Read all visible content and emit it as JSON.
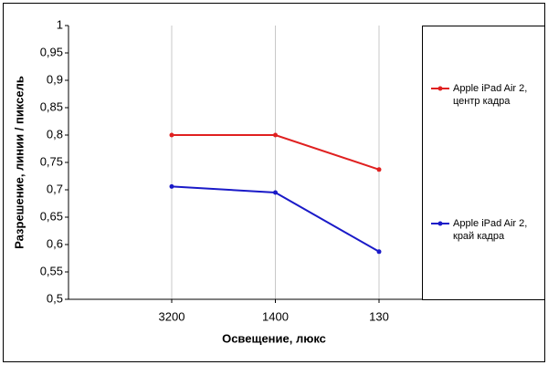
{
  "chart_data": {
    "type": "line",
    "x_label": "Освещение, люкс",
    "y_label": "Разрешение, линии / пиксель",
    "categories": [
      "3200",
      "1400",
      "130"
    ],
    "series": [
      {
        "name": "Apple iPad Air 2, центр кадра",
        "color": "#e02020",
        "values": [
          0.8,
          0.8,
          0.737
        ]
      },
      {
        "name": "Apple iPad Air 2, край кадра",
        "color": "#1a1ac8",
        "values": [
          0.706,
          0.695,
          0.587
        ]
      }
    ],
    "ylim": [
      0.5,
      1
    ],
    "yticks": [
      {
        "value": 0.5,
        "label": "0,5"
      },
      {
        "value": 0.55,
        "label": "0,55"
      },
      {
        "value": 0.6,
        "label": "0,6"
      },
      {
        "value": 0.65,
        "label": "0,65"
      },
      {
        "value": 0.7,
        "label": "0,7"
      },
      {
        "value": 0.75,
        "label": "0,75"
      },
      {
        "value": 0.8,
        "label": "0,8"
      },
      {
        "value": 0.85,
        "label": "0,85"
      },
      {
        "value": 0.9,
        "label": "0,9"
      },
      {
        "value": 0.95,
        "label": "0,95"
      },
      1
    ],
    "grid": true
  }
}
